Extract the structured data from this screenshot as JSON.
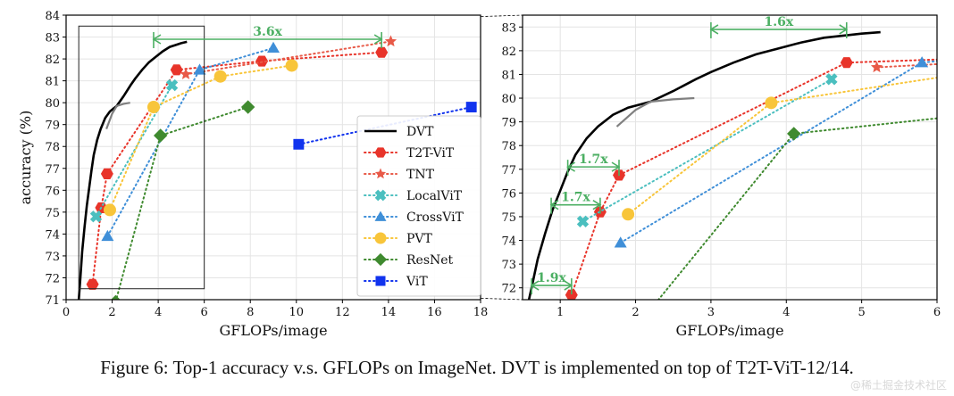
{
  "caption": "Figure 6: Top-1 accuracy v.s. GFLOPs on ImageNet. DVT is implemented on top of T2T-ViT-12/14.",
  "watermark": "@稀土掘金技术社区",
  "chart_data": [
    {
      "type": "line",
      "name": "overview",
      "title": "",
      "xlabel": "GFLOPs/image",
      "ylabel": "accuracy (%)",
      "xlim": [
        0,
        18
      ],
      "ylim": [
        71,
        84
      ],
      "xticks": [
        "0",
        "2",
        "4",
        "6",
        "8",
        "10",
        "12",
        "14",
        "16",
        "18"
      ],
      "yticks": [
        "71",
        "72",
        "73",
        "74",
        "75",
        "76",
        "77",
        "78",
        "79",
        "80",
        "81",
        "82",
        "83",
        "84"
      ],
      "grid": true,
      "legend_position": "lower-right",
      "zoom_box": {
        "x": [
          0.55,
          6.0
        ],
        "y": [
          71.5,
          83.5
        ]
      },
      "annotations": [
        {
          "text": "3.6x",
          "x_from": 3.8,
          "x_to": 13.7,
          "y": 82.9
        }
      ]
    },
    {
      "type": "line",
      "name": "zoomed",
      "title": "",
      "xlabel": "GFLOPs/image",
      "ylabel": "",
      "xlim": [
        0.5,
        6
      ],
      "ylim": [
        71.5,
        83.5
      ],
      "xticks": [
        "1",
        "2",
        "3",
        "4",
        "5",
        "6"
      ],
      "yticks": [
        "72",
        "73",
        "74",
        "75",
        "76",
        "77",
        "78",
        "79",
        "80",
        "81",
        "82",
        "83"
      ],
      "grid": true,
      "annotations": [
        {
          "text": "1.6x",
          "x_from": 3.0,
          "x_to": 4.8,
          "y": 82.9
        },
        {
          "text": "1.7x",
          "x_from": 1.1,
          "x_to": 1.78,
          "y": 77.1
        },
        {
          "text": "1.7x",
          "x_from": 0.88,
          "x_to": 1.53,
          "y": 75.5
        },
        {
          "text": "1.9x",
          "x_from": 0.62,
          "x_to": 1.15,
          "y": 72.1
        }
      ]
    }
  ],
  "series": [
    {
      "name": "DVT",
      "color": "#000000",
      "style": "solid",
      "marker": "none",
      "x": [
        0.55,
        0.62,
        0.7,
        0.8,
        0.9,
        1.0,
        1.1,
        1.2,
        1.35,
        1.5,
        1.7,
        1.9,
        2.2,
        2.5,
        2.8,
        3.0,
        3.3,
        3.6,
        3.9,
        4.2,
        4.5,
        4.8,
        5.0,
        5.25
      ],
      "y": [
        71.0,
        72.0,
        73.2,
        74.3,
        75.3,
        76.1,
        76.9,
        77.6,
        78.3,
        78.8,
        79.3,
        79.6,
        79.85,
        80.3,
        80.8,
        81.1,
        81.5,
        81.85,
        82.1,
        82.35,
        82.55,
        82.65,
        82.72,
        82.78
      ]
    },
    {
      "name": "DVT-branch",
      "color": "#808080",
      "style": "solid",
      "marker": "none",
      "legend": false,
      "x": [
        1.75,
        2.0,
        2.2,
        2.5,
        2.78
      ],
      "y": [
        78.8,
        79.5,
        79.85,
        79.95,
        80.0
      ]
    },
    {
      "name": "T2T-ViT",
      "color": "#e8342a",
      "style": "dotted",
      "marker": "hexagon",
      "x": [
        1.15,
        1.53,
        1.78,
        4.8,
        8.5,
        13.7
      ],
      "y": [
        71.7,
        75.2,
        76.75,
        81.5,
        81.9,
        82.3
      ]
    },
    {
      "name": "TNT",
      "color": "#e85a48",
      "style": "dotted",
      "marker": "star",
      "x": [
        5.2,
        14.1
      ],
      "y": [
        81.3,
        82.8
      ]
    },
    {
      "name": "LocalViT",
      "color": "#4bbfbf",
      "style": "dotted",
      "marker": "x-cross",
      "x": [
        1.3,
        4.6
      ],
      "y": [
        74.8,
        80.8
      ]
    },
    {
      "name": "CrossViT",
      "color": "#3f8fd8",
      "style": "dotted",
      "marker": "triangle",
      "x": [
        1.8,
        5.8,
        9.0
      ],
      "y": [
        73.9,
        81.5,
        82.5
      ]
    },
    {
      "name": "PVT",
      "color": "#f8c53a",
      "style": "dotted",
      "marker": "circle",
      "x": [
        1.9,
        3.8,
        6.7,
        9.8
      ],
      "y": [
        75.1,
        79.8,
        81.2,
        81.7
      ]
    },
    {
      "name": "ResNet",
      "color": "#3f8a2f",
      "style": "dotted",
      "marker": "diamond",
      "x": [
        2.15,
        4.1,
        7.9
      ],
      "y": [
        70.9,
        78.5,
        79.8
      ]
    },
    {
      "name": "ViT",
      "color": "#1133ee",
      "style": "dotted",
      "marker": "square",
      "x": [
        10.1,
        17.6
      ],
      "y": [
        78.1,
        79.8
      ]
    }
  ]
}
